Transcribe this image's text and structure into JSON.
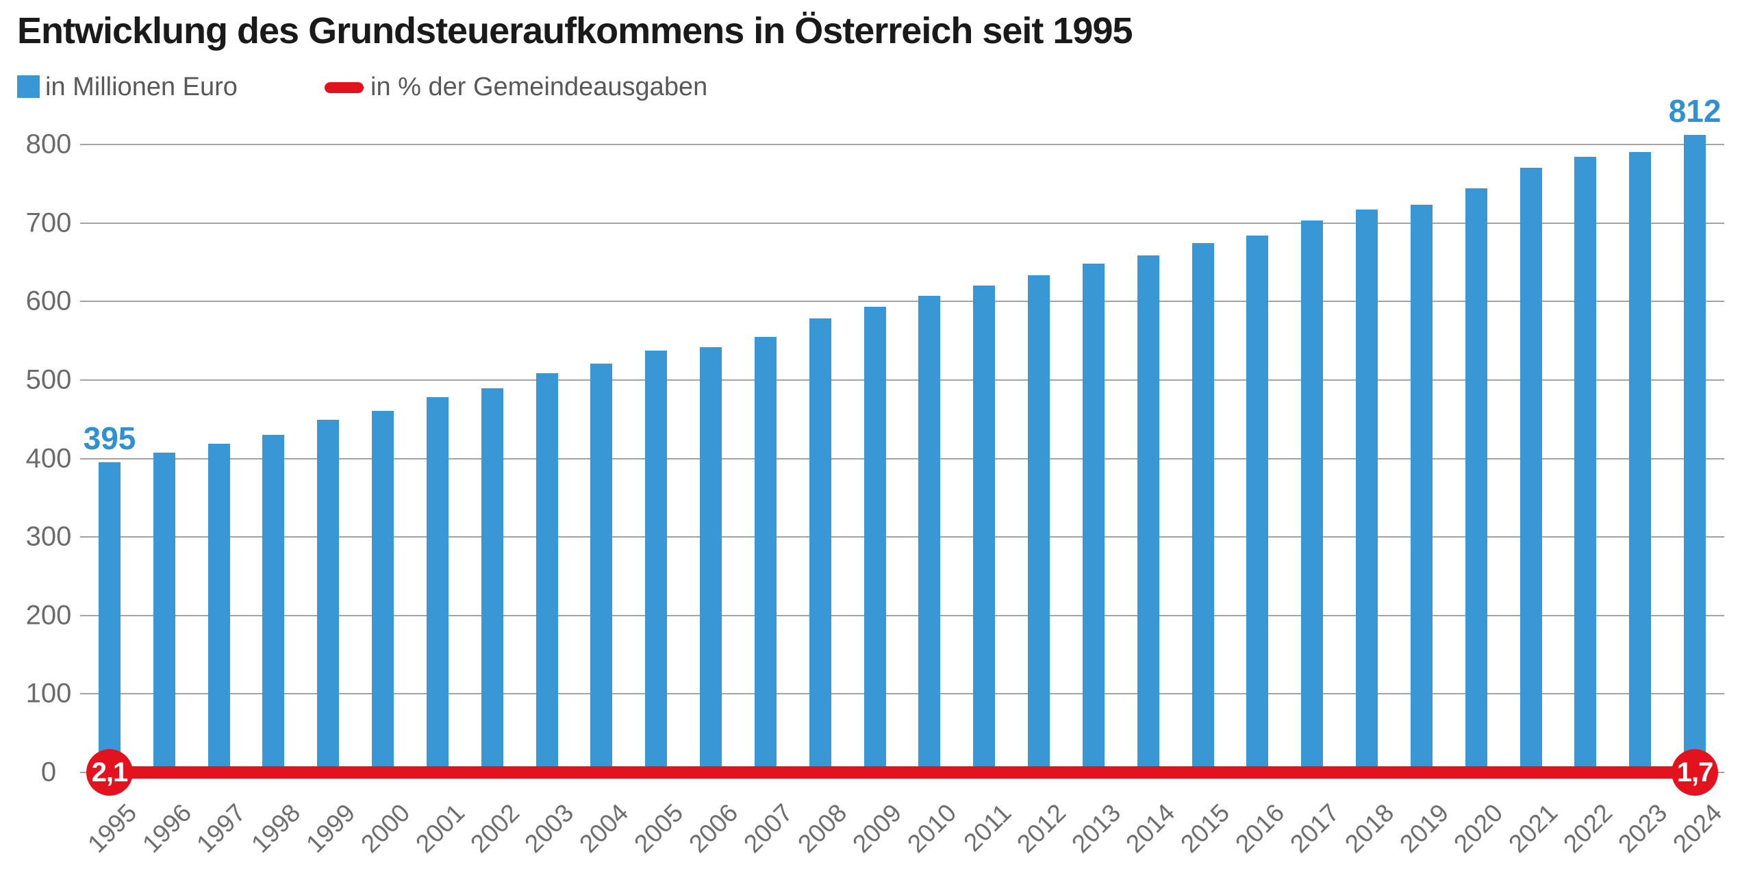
{
  "title": "Entwicklung des Grundsteueraufkommens in Österreich seit 1995",
  "legend": {
    "items": [
      {
        "label": "in Millionen Euro",
        "swatch": "square",
        "color": "#3897d4"
      },
      {
        "label": "in % der Gemeindeausgaben",
        "swatch": "line",
        "color": "#e2131e"
      }
    ]
  },
  "colors": {
    "background": "#ffffff",
    "title_text": "#1a1a1a",
    "legend_text": "#58585a",
    "bar": "#3897d4",
    "bar_value_label": "#3090d0",
    "pct_line": "#e2131e",
    "pct_badge_text": "#ffffff",
    "gridline": "#a3a3a3",
    "axis_text": "#6b6b6b"
  },
  "chart_data": {
    "type": "bar",
    "title": "Entwicklung des Grundsteueraufkommens in Österreich seit 1995",
    "categories": [
      "1995",
      "1996",
      "1997",
      "1998",
      "1999",
      "2000",
      "2001",
      "2002",
      "2003",
      "2004",
      "2005",
      "2006",
      "2007",
      "2008",
      "2009",
      "2010",
      "2011",
      "2012",
      "2013",
      "2014",
      "2015",
      "2016",
      "2017",
      "2018",
      "2019",
      "2020",
      "2021",
      "2022",
      "2023",
      "2024"
    ],
    "series": [
      {
        "name": "in Millionen Euro",
        "type": "bar",
        "color": "#3897d4",
        "values": [
          395,
          407,
          419,
          430,
          449,
          461,
          478,
          489,
          509,
          521,
          537,
          542,
          555,
          578,
          593,
          607,
          620,
          633,
          648,
          659,
          674,
          684,
          703,
          717,
          723,
          744,
          770,
          784,
          790,
          812
        ]
      },
      {
        "name": "in % der Gemeindeausgaben",
        "type": "line",
        "color": "#e2131e",
        "axis": "secondary",
        "plotted_at_primary_value": 0,
        "labeled_points": [
          {
            "category": "1995",
            "label": "2,1"
          },
          {
            "category": "2024",
            "label": "1,7"
          }
        ]
      }
    ],
    "bar_value_labels": [
      {
        "category": "1995",
        "label": "395"
      },
      {
        "category": "2024",
        "label": "812"
      }
    ],
    "ylabel": "",
    "xlabel": "",
    "ylim": [
      0,
      800
    ],
    "yticks": [
      0,
      100,
      200,
      300,
      400,
      500,
      600,
      700,
      800
    ],
    "grid": "horizontal",
    "legend_position": "top-left"
  }
}
